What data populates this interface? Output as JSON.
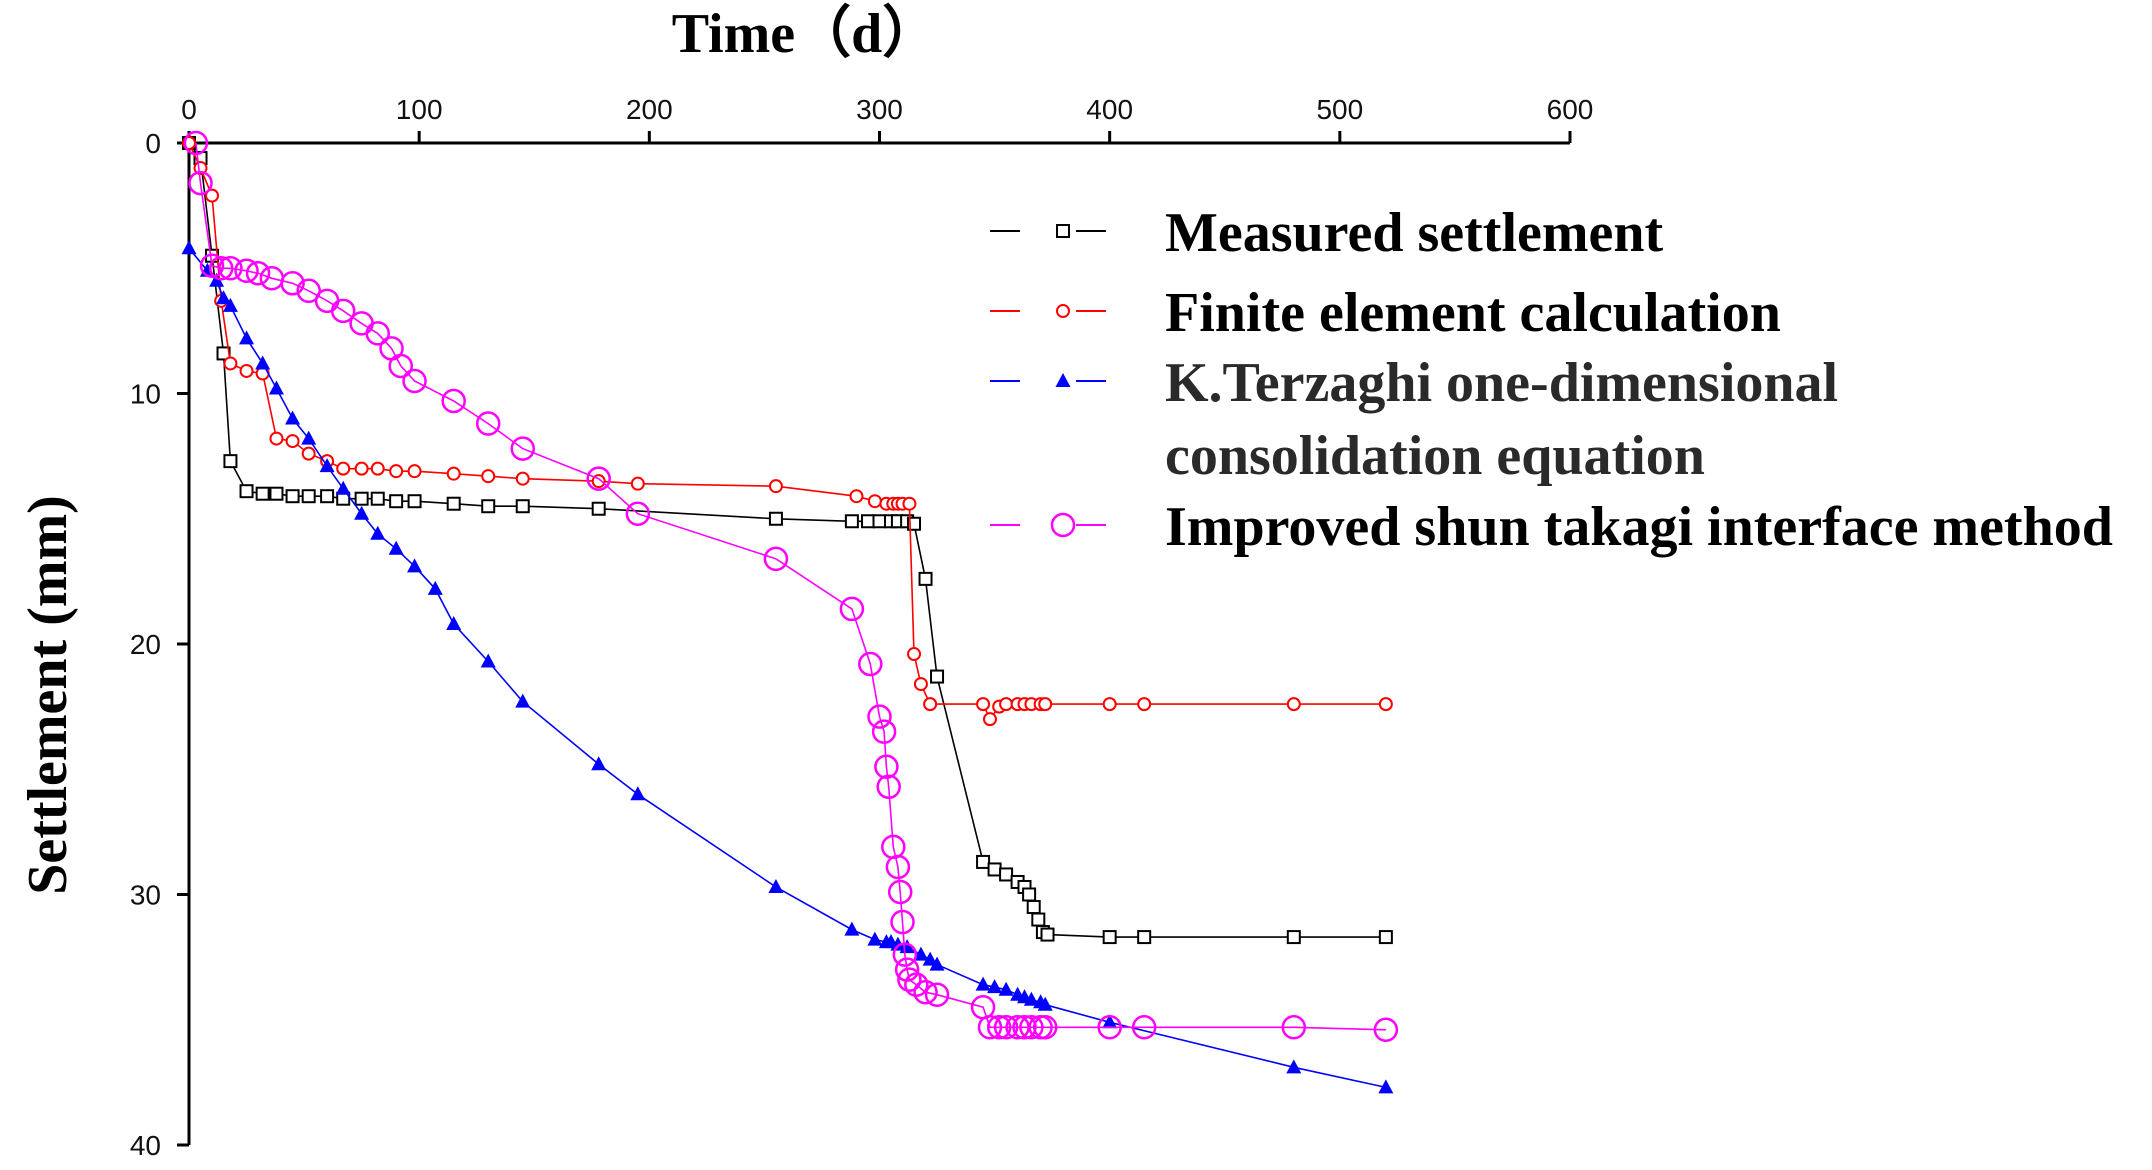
{
  "chart_data": {
    "type": "line",
    "xlabel": "Time（d）",
    "ylabel": "Settlement (mm)",
    "xlim": [
      0,
      600
    ],
    "ylim": [
      0,
      40
    ],
    "y_reversed": true,
    "x_axis_position": "top",
    "xticks": [
      0,
      100,
      200,
      300,
      400,
      500,
      600
    ],
    "yticks": [
      0,
      10,
      20,
      30,
      40
    ],
    "grid": false,
    "legend_position": "top-right",
    "series": [
      {
        "name": "Measured settlement",
        "color": "#000000",
        "marker": "square-open",
        "line_style": "solid",
        "points": [
          [
            0,
            0
          ],
          [
            5,
            0.6
          ],
          [
            10,
            4.5
          ],
          [
            15,
            8.4
          ],
          [
            18,
            12.7
          ],
          [
            25,
            13.9
          ],
          [
            32,
            14.0
          ],
          [
            38,
            14.0
          ],
          [
            45,
            14.1
          ],
          [
            52,
            14.1
          ],
          [
            60,
            14.1
          ],
          [
            67,
            14.2
          ],
          [
            75,
            14.2
          ],
          [
            82,
            14.2
          ],
          [
            90,
            14.3
          ],
          [
            98,
            14.3
          ],
          [
            115,
            14.4
          ],
          [
            130,
            14.5
          ],
          [
            145,
            14.5
          ],
          [
            178,
            14.6
          ],
          [
            255,
            15.0
          ],
          [
            288,
            15.1
          ],
          [
            295,
            15.1
          ],
          [
            300,
            15.1
          ],
          [
            305,
            15.1
          ],
          [
            308,
            15.1
          ],
          [
            312,
            15.1
          ],
          [
            315,
            15.2
          ],
          [
            320,
            17.4
          ],
          [
            325,
            21.3
          ],
          [
            345,
            28.7
          ],
          [
            350,
            29.0
          ],
          [
            355,
            29.2
          ],
          [
            360,
            29.5
          ],
          [
            363,
            29.7
          ],
          [
            365,
            30.0
          ],
          [
            367,
            30.5
          ],
          [
            369,
            31.0
          ],
          [
            371,
            31.5
          ],
          [
            373,
            31.6
          ],
          [
            400,
            31.7
          ],
          [
            415,
            31.7
          ],
          [
            480,
            31.7
          ],
          [
            520,
            31.7
          ]
        ]
      },
      {
        "name": "Finite element calculation",
        "color": "#ff0000",
        "marker": "circle-open-small",
        "line_style": "solid",
        "points": [
          [
            0,
            0
          ],
          [
            5,
            1.0
          ],
          [
            10,
            2.1
          ],
          [
            14,
            6.3
          ],
          [
            18,
            8.8
          ],
          [
            25,
            9.1
          ],
          [
            32,
            9.2
          ],
          [
            38,
            11.8
          ],
          [
            45,
            11.9
          ],
          [
            52,
            12.4
          ],
          [
            60,
            12.7
          ],
          [
            67,
            13.0
          ],
          [
            75,
            13.0
          ],
          [
            82,
            13.0
          ],
          [
            90,
            13.1
          ],
          [
            98,
            13.1
          ],
          [
            115,
            13.2
          ],
          [
            130,
            13.3
          ],
          [
            145,
            13.4
          ],
          [
            178,
            13.5
          ],
          [
            195,
            13.6
          ],
          [
            255,
            13.7
          ],
          [
            290,
            14.1
          ],
          [
            298,
            14.3
          ],
          [
            303,
            14.4
          ],
          [
            306,
            14.4
          ],
          [
            308,
            14.4
          ],
          [
            310,
            14.4
          ],
          [
            313,
            14.4
          ],
          [
            315,
            20.4
          ],
          [
            318,
            21.6
          ],
          [
            322,
            22.4
          ],
          [
            345,
            22.4
          ],
          [
            348,
            23.0
          ],
          [
            352,
            22.5
          ],
          [
            355,
            22.4
          ],
          [
            360,
            22.4
          ],
          [
            363,
            22.4
          ],
          [
            366,
            22.4
          ],
          [
            370,
            22.4
          ],
          [
            372,
            22.4
          ],
          [
            400,
            22.4
          ],
          [
            415,
            22.4
          ],
          [
            480,
            22.4
          ],
          [
            520,
            22.4
          ]
        ]
      },
      {
        "name": "K.Terzaghi one-dimensional consolidation equation",
        "color": "#0000ff",
        "marker": "triangle-filled",
        "line_style": "solid",
        "points": [
          [
            0,
            4.2
          ],
          [
            8,
            5.1
          ],
          [
            12,
            5.5
          ],
          [
            15,
            6.2
          ],
          [
            18,
            6.5
          ],
          [
            25,
            7.8
          ],
          [
            32,
            8.8
          ],
          [
            38,
            9.8
          ],
          [
            45,
            11.0
          ],
          [
            52,
            11.8
          ],
          [
            60,
            12.9
          ],
          [
            67,
            13.8
          ],
          [
            75,
            14.8
          ],
          [
            82,
            15.6
          ],
          [
            90,
            16.2
          ],
          [
            98,
            16.9
          ],
          [
            107,
            17.8
          ],
          [
            115,
            19.2
          ],
          [
            130,
            20.7
          ],
          [
            145,
            22.3
          ],
          [
            178,
            24.8
          ],
          [
            195,
            26.0
          ],
          [
            255,
            29.7
          ],
          [
            288,
            31.4
          ],
          [
            298,
            31.8
          ],
          [
            303,
            31.9
          ],
          [
            305,
            31.9
          ],
          [
            308,
            32.0
          ],
          [
            312,
            32.1
          ],
          [
            318,
            32.4
          ],
          [
            322,
            32.6
          ],
          [
            325,
            32.8
          ],
          [
            345,
            33.6
          ],
          [
            350,
            33.7
          ],
          [
            355,
            33.8
          ],
          [
            360,
            34.0
          ],
          [
            363,
            34.1
          ],
          [
            366,
            34.2
          ],
          [
            370,
            34.3
          ],
          [
            372,
            34.4
          ],
          [
            400,
            35.1
          ],
          [
            480,
            36.9
          ],
          [
            520,
            37.7
          ]
        ]
      },
      {
        "name": "Improved shun takagi interface method",
        "color": "#ff00ff",
        "marker": "circle-open-large",
        "line_style": "solid",
        "points": [
          [
            3,
            0
          ],
          [
            5,
            1.6
          ],
          [
            10,
            4.9
          ],
          [
            14,
            5.0
          ],
          [
            18,
            5.0
          ],
          [
            25,
            5.1
          ],
          [
            30,
            5.2
          ],
          [
            36,
            5.4
          ],
          [
            45,
            5.6
          ],
          [
            52,
            5.9
          ],
          [
            60,
            6.3
          ],
          [
            67,
            6.7
          ],
          [
            75,
            7.2
          ],
          [
            82,
            7.6
          ],
          [
            88,
            8.2
          ],
          [
            92,
            8.9
          ],
          [
            98,
            9.5
          ],
          [
            115,
            10.3
          ],
          [
            130,
            11.2
          ],
          [
            145,
            12.2
          ],
          [
            178,
            13.4
          ],
          [
            195,
            14.8
          ],
          [
            255,
            16.6
          ],
          [
            288,
            18.6
          ],
          [
            296,
            20.8
          ],
          [
            300,
            22.9
          ],
          [
            302,
            23.5
          ],
          [
            303,
            24.9
          ],
          [
            304,
            25.7
          ],
          [
            306,
            28.1
          ],
          [
            308,
            28.9
          ],
          [
            309,
            29.9
          ],
          [
            310,
            31.1
          ],
          [
            311,
            32.4
          ],
          [
            312,
            33.0
          ],
          [
            313,
            33.4
          ],
          [
            316,
            33.6
          ],
          [
            320,
            33.9
          ],
          [
            325,
            34.0
          ],
          [
            345,
            34.5
          ],
          [
            348,
            35.3
          ],
          [
            352,
            35.3
          ],
          [
            355,
            35.3
          ],
          [
            360,
            35.3
          ],
          [
            363,
            35.3
          ],
          [
            366,
            35.3
          ],
          [
            370,
            35.3
          ],
          [
            372,
            35.3
          ],
          [
            400,
            35.3
          ],
          [
            415,
            35.3
          ],
          [
            480,
            35.3
          ],
          [
            520,
            35.4
          ]
        ]
      }
    ]
  },
  "legend": {
    "items": [
      {
        "label_lines": [
          "Measured settlement"
        ],
        "color": "#000000",
        "marker": "square-open"
      },
      {
        "label_lines": [
          "Finite element calculation"
        ],
        "color": "#ff0000",
        "marker": "circle-open-small"
      },
      {
        "label_lines": [
          "K.Terzaghi one-dimensional",
          "consolidation equation"
        ],
        "color": "#0000ff",
        "marker": "triangle-filled"
      },
      {
        "label_lines": [
          "Improved shun takagi interface method"
        ],
        "color": "#ff00ff",
        "marker": "circle-open-large"
      }
    ]
  }
}
